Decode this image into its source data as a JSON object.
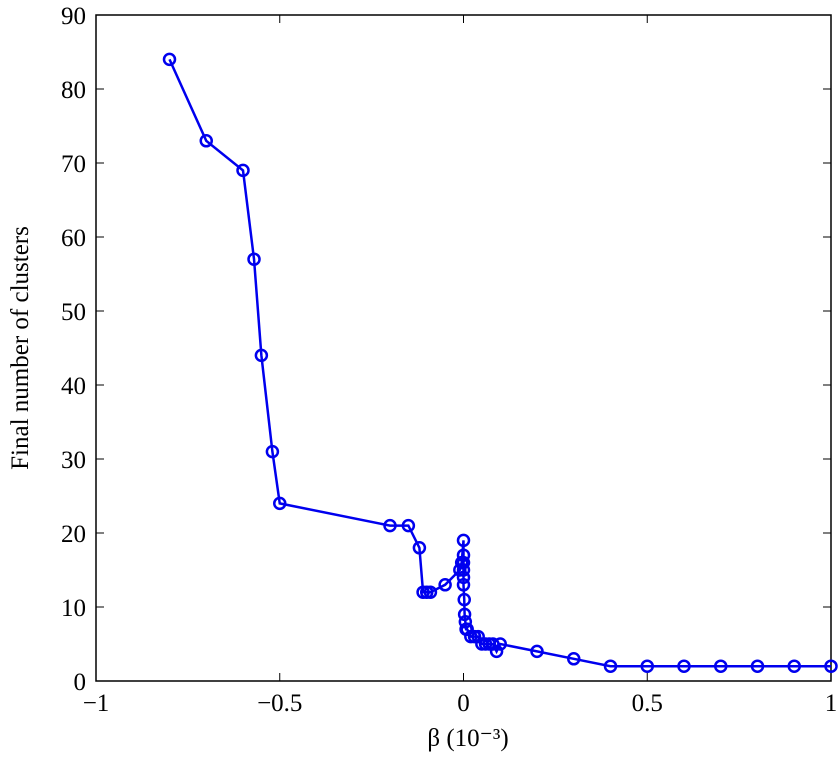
{
  "chart_data": {
    "type": "line",
    "xlabel": "β (10⁻³)",
    "ylabel": "Final number of clusters",
    "x": [
      -0.8,
      -0.7,
      -0.6,
      -0.57,
      -0.55,
      -0.52,
      -0.5,
      -0.2,
      -0.15,
      -0.12,
      -0.11,
      -0.1,
      -0.09,
      -0.05,
      -0.01,
      -0.005,
      0,
      0,
      0,
      0,
      0,
      0,
      0.002,
      0.003,
      0.005,
      0.007,
      0.01,
      0.02,
      0.03,
      0.04,
      0.05,
      0.06,
      0.07,
      0.08,
      0.09,
      0.1,
      0.2,
      0.3,
      0.4,
      0.5,
      0.6,
      0.7,
      0.8,
      0.9,
      1
    ],
    "series": [
      {
        "color": "#0000ee",
        "values": [
          84,
          73,
          69,
          57,
          44,
          31,
          24,
          21,
          21,
          18,
          12,
          12,
          12,
          13,
          15,
          16,
          19,
          17,
          16,
          15,
          14,
          13,
          11,
          9,
          8,
          7,
          7,
          6,
          6,
          6,
          5,
          5,
          5,
          5,
          4,
          5,
          4,
          3,
          2,
          2,
          2,
          2,
          2,
          2,
          2
        ]
      }
    ],
    "xlim": [
      -1,
      1
    ],
    "xticks": [
      {
        "value": -1,
        "label": "−1"
      },
      {
        "value": -0.5,
        "label": "−0.5"
      },
      0,
      0.5,
      1
    ],
    "ylim": [
      0,
      90
    ],
    "yticks": [
      0,
      10,
      20,
      30,
      40,
      50,
      60,
      70,
      80,
      90
    ],
    "marker": "circle"
  }
}
